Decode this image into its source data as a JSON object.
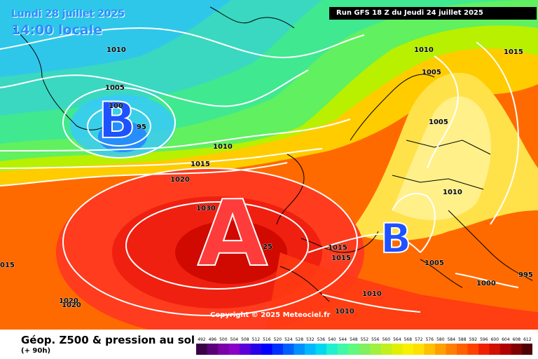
{
  "map": {
    "date_line": "Lundi 28 juillet 2025",
    "time_line": "14:00 locale",
    "run_info": "Run GFS 18 Z du Jeudi 24 juillet 2025",
    "copyright": "Copyright © 2025 Meteociel.fr"
  },
  "pressure_systems": [
    {
      "symbol": "B",
      "type": "low",
      "region": "Greenland Sea",
      "color": "#1e52ff"
    },
    {
      "symbol": "A",
      "type": "high",
      "region": "Atlantic west of Iberia",
      "color": "#ff3c3c"
    },
    {
      "symbol": "B",
      "type": "low",
      "region": "Northern Italy",
      "color": "#1e52ff"
    }
  ],
  "isobar_labels": [
    "1010",
    "1005",
    "100",
    "95",
    "1010",
    "1015",
    "1020",
    "1030",
    "25",
    "1015",
    "1015",
    "015",
    "1020",
    "1020",
    "1010",
    "1010",
    "1010",
    "1005",
    "1005",
    "1010",
    "1015",
    "1005",
    "1000",
    "995"
  ],
  "legend": {
    "title": "Géop. Z500 & pression au sol",
    "subtitle": "(+ 90h)",
    "scale_values": [
      "492",
      "496",
      "500",
      "504",
      "508",
      "512",
      "516",
      "520",
      "524",
      "528",
      "532",
      "536",
      "540",
      "544",
      "548",
      "552",
      "556",
      "560",
      "564",
      "568",
      "572",
      "576",
      "580",
      "584",
      "588",
      "592",
      "596",
      "600",
      "604",
      "608",
      "612"
    ],
    "scale_colors": [
      "#3a0048",
      "#5a0078",
      "#7a00a8",
      "#8a00c8",
      "#5a00d8",
      "#2800e8",
      "#0000ff",
      "#0030ff",
      "#0060ff",
      "#0090ff",
      "#00b8ff",
      "#00d8f0",
      "#20f0d0",
      "#40f8a8",
      "#60f880",
      "#80f060",
      "#a0f040",
      "#c0f020",
      "#e0f000",
      "#f8f000",
      "#ffe000",
      "#ffc000",
      "#ffa000",
      "#ff8000",
      "#ff6000",
      "#ff4000",
      "#f02000",
      "#d01000",
      "#b00000",
      "#800000",
      "#500000"
    ]
  }
}
